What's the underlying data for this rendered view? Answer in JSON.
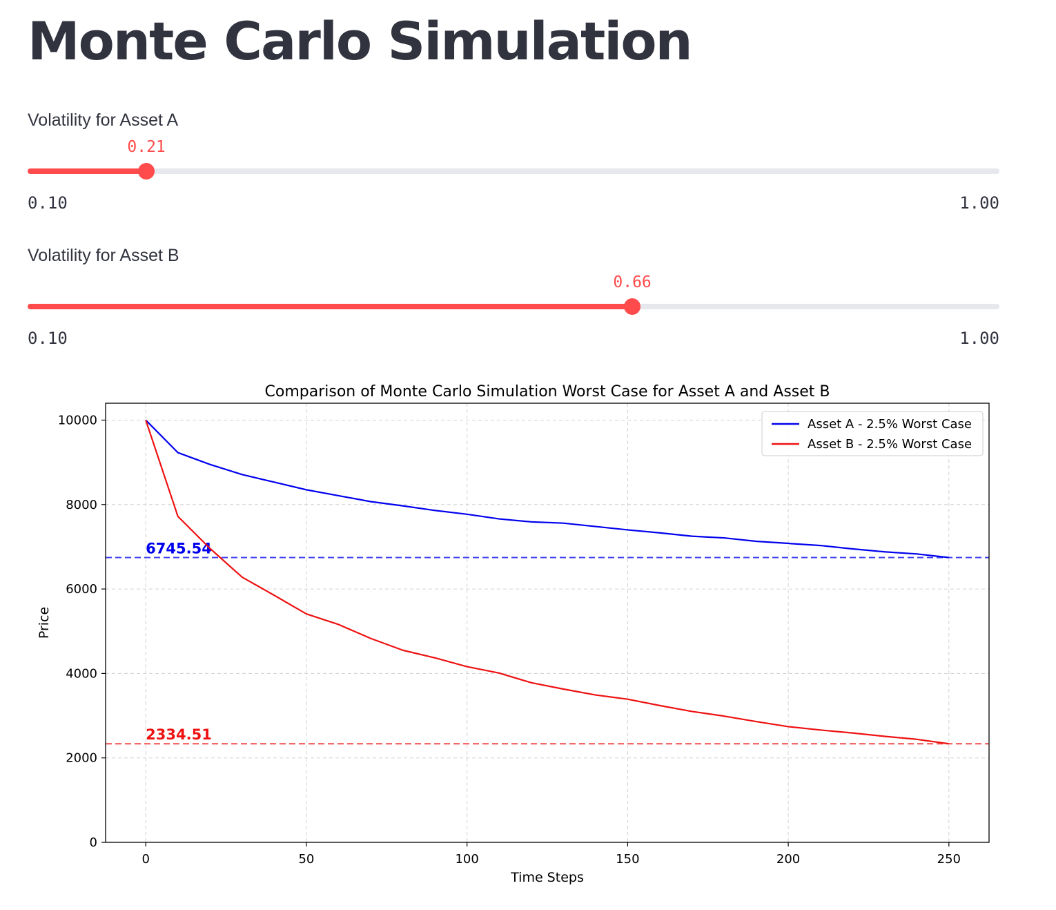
{
  "page": {
    "title": "Monte Carlo Simulation"
  },
  "sliders": [
    {
      "label": "Volatility for Asset A",
      "value": 0.21,
      "value_text": "0.21",
      "min": 0.1,
      "max": 1.0,
      "min_text": "0.10",
      "max_text": "1.00"
    },
    {
      "label": "Volatility for Asset B",
      "value": 0.66,
      "value_text": "0.66",
      "min": 0.1,
      "max": 1.0,
      "min_text": "0.10",
      "max_text": "1.00"
    }
  ],
  "colors": {
    "accent": "#ff4b4b",
    "track": "#e6e8ee",
    "asset_a": "#0000ee",
    "asset_b": "#ee1111"
  },
  "chart_data": {
    "type": "line",
    "title": "Comparison of Monte Carlo Simulation Worst Case for Asset A and Asset B",
    "xlabel": "Time Steps",
    "ylabel": "Price",
    "xlim": [
      -12.5,
      262.5
    ],
    "ylim": [
      0,
      10400
    ],
    "xticks": [
      0,
      50,
      100,
      150,
      200,
      250
    ],
    "yticks": [
      0,
      2000,
      4000,
      6000,
      8000,
      10000
    ],
    "grid": true,
    "legend_position": "top-right",
    "x": [
      0,
      10,
      20,
      30,
      40,
      50,
      60,
      70,
      80,
      90,
      100,
      110,
      120,
      130,
      140,
      150,
      160,
      170,
      180,
      190,
      200,
      210,
      220,
      230,
      240,
      250
    ],
    "series": [
      {
        "name": "Asset A - 2.5% Worst Case",
        "color": "#0000ee",
        "values": [
          10000,
          9230,
          8950,
          8710,
          8530,
          8350,
          8210,
          8070,
          7970,
          7860,
          7770,
          7660,
          7590,
          7560,
          7480,
          7400,
          7330,
          7250,
          7210,
          7130,
          7080,
          7030,
          6950,
          6880,
          6830,
          6745.54
        ],
        "reference_line": 6745.54,
        "reference_label": "6745.54"
      },
      {
        "name": "Asset B - 2.5% Worst Case",
        "color": "#ee1111",
        "values": [
          10000,
          7720,
          6960,
          6280,
          5850,
          5410,
          5160,
          4830,
          4550,
          4370,
          4160,
          4010,
          3780,
          3630,
          3490,
          3390,
          3240,
          3100,
          2990,
          2860,
          2740,
          2660,
          2590,
          2510,
          2440,
          2334.51
        ],
        "reference_line": 2334.51,
        "reference_label": "2334.51"
      }
    ]
  }
}
